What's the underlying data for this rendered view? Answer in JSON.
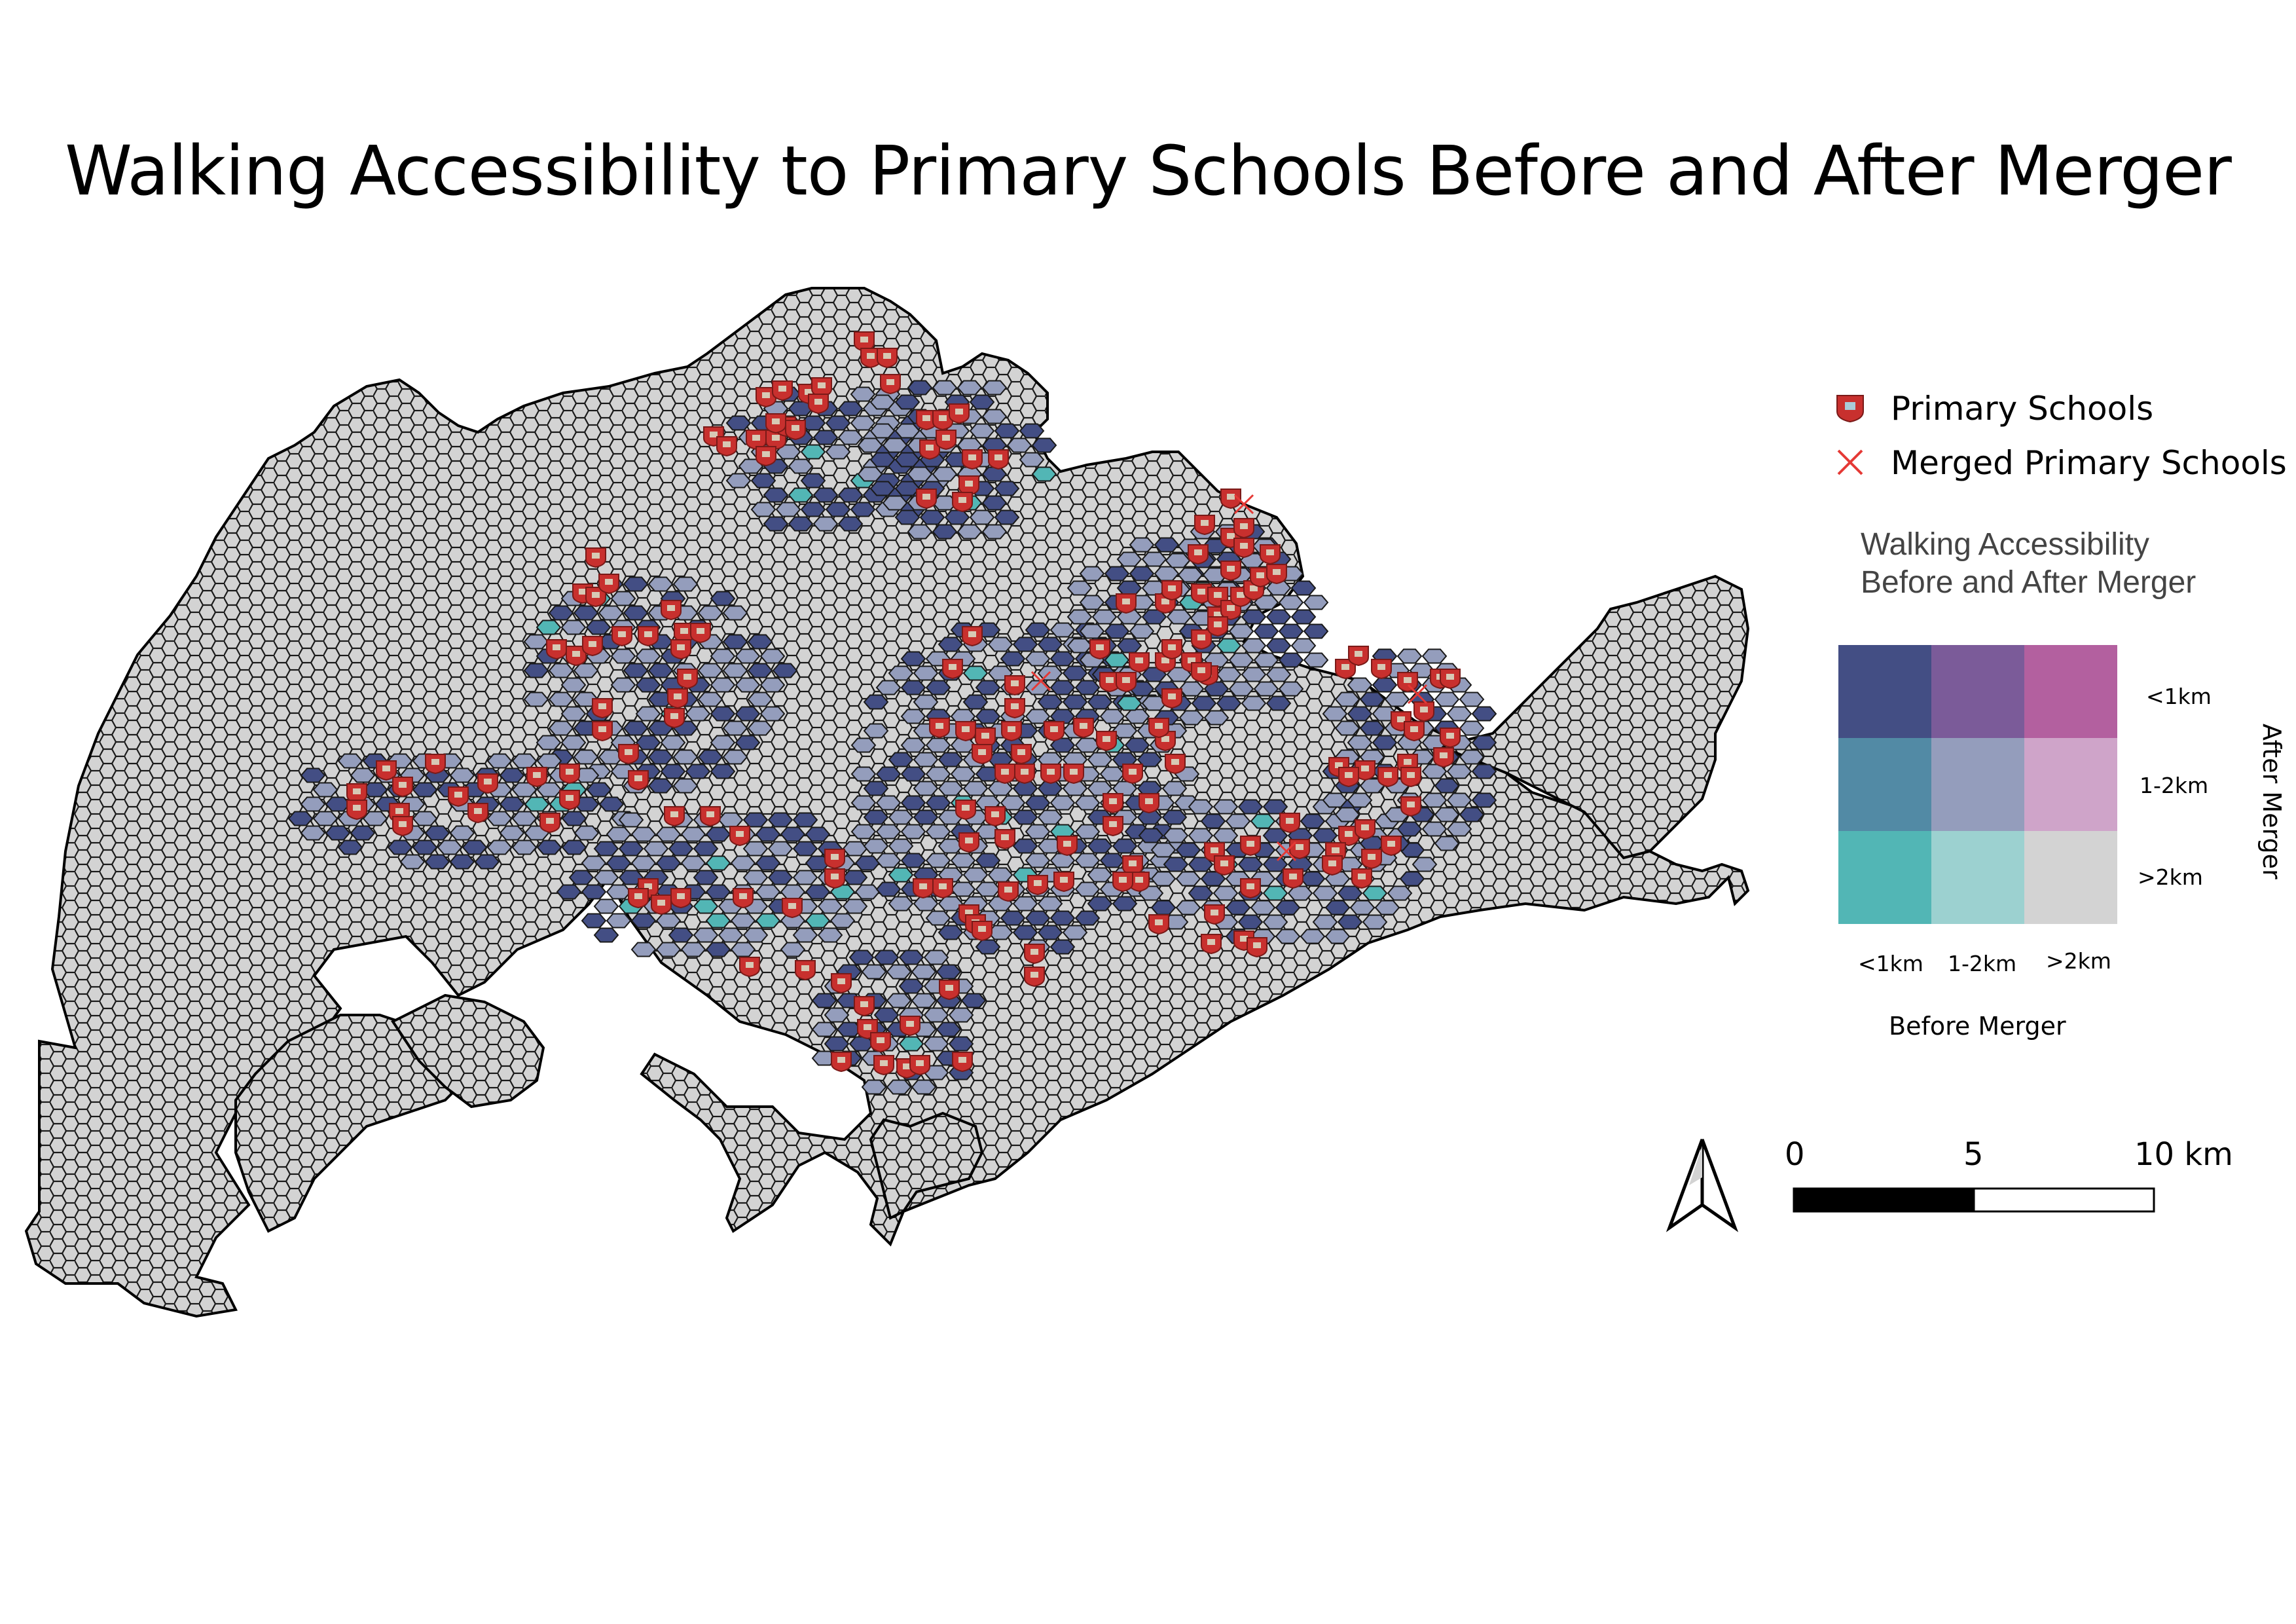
{
  "title": "Walking Accessibility to Primary Schools Before and After Merger",
  "legend": {
    "items": [
      {
        "label": "Primary Schools",
        "icon": "school-marker-icon",
        "color": "#c8302e"
      },
      {
        "label": "Merged Primary Schools",
        "icon": "x-marker-icon",
        "color": "#e53935"
      }
    ],
    "bivariate": {
      "title_line1": "Walking Accessibility",
      "title_line2": "Before and After Merger",
      "x_axis_title": "Before Merger",
      "y_axis_title": "After Merger",
      "x_categories": [
        "<1km",
        "1-2km",
        ">2km"
      ],
      "y_categories": [
        "<1km",
        "1-2km",
        ">2km"
      ],
      "colors": [
        [
          "#434e84",
          "#7b5b99",
          "#b3609f"
        ],
        [
          "#528aa5",
          "#949dbc",
          "#cfa4c9"
        ],
        [
          "#52b6b5",
          "#9cd1d0",
          "#d3d3d3"
        ]
      ]
    }
  },
  "scale_bar": {
    "labels": [
      "0",
      "5",
      "10 km"
    ]
  },
  "north_arrow": {
    "icon": "north-arrow-icon"
  },
  "map": {
    "land_color": "#d3d3d3",
    "outline_color": "#000000"
  }
}
